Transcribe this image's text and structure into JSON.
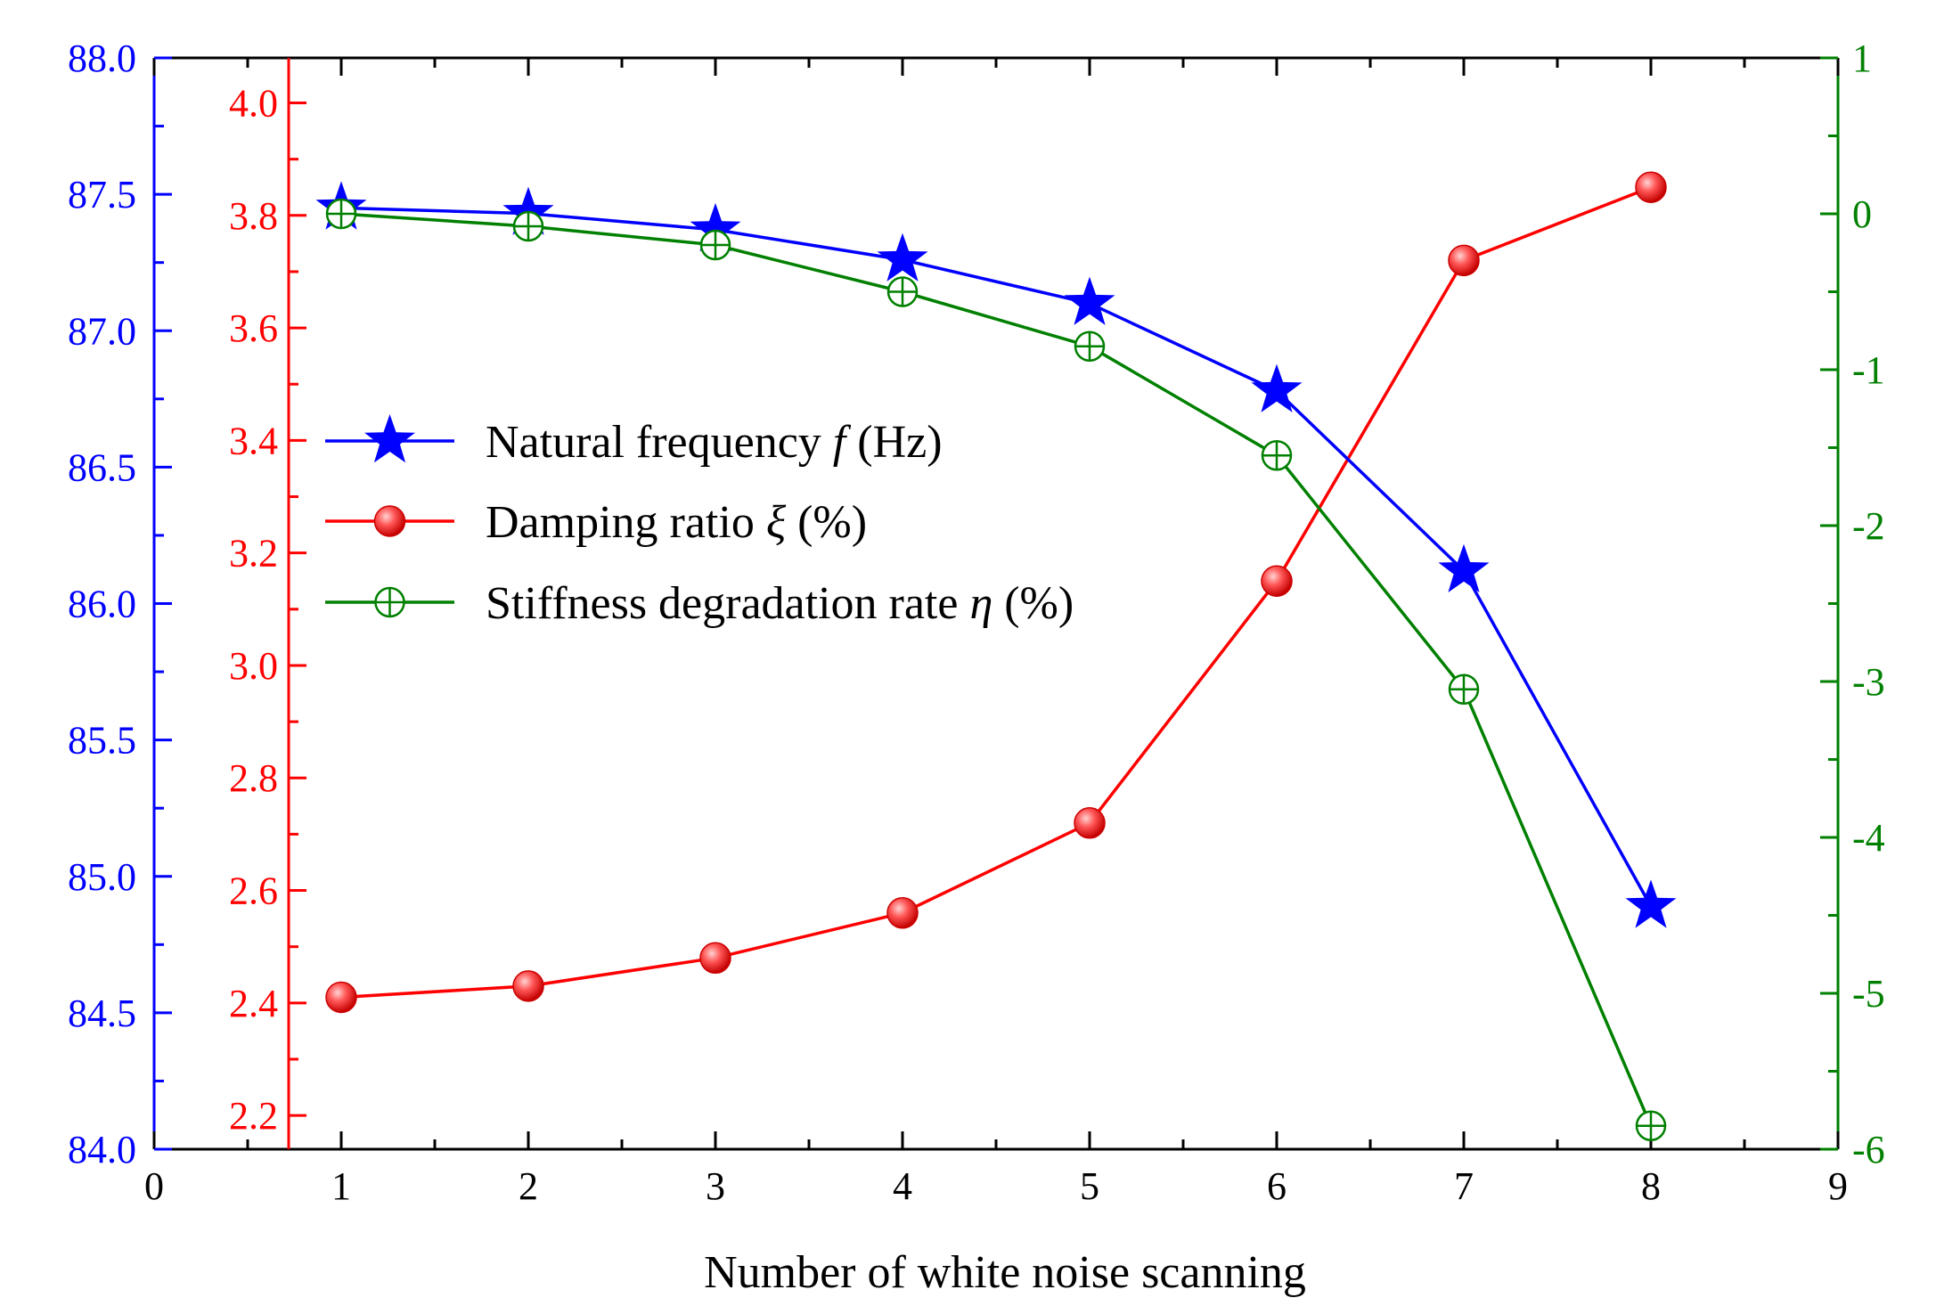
{
  "chart_data": {
    "type": "line",
    "xlabel": "Number of white noise scanning",
    "xlim": [
      0,
      9
    ],
    "x_ticks": [
      0,
      1,
      2,
      3,
      4,
      5,
      6,
      7,
      8,
      9
    ],
    "x": [
      1,
      2,
      3,
      4,
      5,
      6,
      7,
      8
    ],
    "axes": {
      "left_blue": {
        "color": "#0000ff",
        "range": [
          84.0,
          88.0
        ],
        "ticks": [
          "84.0",
          "84.5",
          "85.0",
          "85.5",
          "86.0",
          "86.5",
          "87.0",
          "87.5",
          "88.0"
        ]
      },
      "left_red": {
        "color": "#ff0000",
        "range": [
          2.14,
          4.08
        ],
        "ticks": [
          "2.2",
          "2.4",
          "2.6",
          "2.8",
          "3.0",
          "3.2",
          "3.4",
          "3.6",
          "3.8",
          "4.0"
        ]
      },
      "right_green": {
        "color": "#008000",
        "range": [
          -6,
          1
        ],
        "ticks": [
          "-6",
          "-5",
          "-4",
          "-3",
          "-2",
          "-1",
          "0",
          "1"
        ]
      }
    },
    "series": [
      {
        "name": "Natural frequency f (Hz)",
        "legend_text": "Natural frequency ",
        "legend_symbol": "f",
        "legend_unit": " (Hz)",
        "axis": "left_blue",
        "color": "#0000ff",
        "marker": "star",
        "values": [
          87.45,
          87.43,
          87.37,
          87.26,
          87.1,
          86.78,
          86.12,
          84.89
        ]
      },
      {
        "name": "Damping ratio ξ (%)",
        "legend_text": "Damping ratio ",
        "legend_symbol": "ξ",
        "legend_unit": " (%)",
        "axis": "left_red",
        "color": "#ff0000",
        "marker": "sphere",
        "values": [
          2.41,
          2.43,
          2.48,
          2.56,
          2.72,
          3.15,
          3.72,
          3.85
        ]
      },
      {
        "name": "Stiffness degradation rate η (%)",
        "legend_text": "Stiffness degradation rate ",
        "legend_symbol": "η",
        "legend_unit": " (%)",
        "axis": "right_green",
        "color": "#008000",
        "marker": "circle-cross",
        "values": [
          0.0,
          -0.08,
          -0.2,
          -0.5,
          -0.85,
          -1.55,
          -3.05,
          -5.85
        ]
      }
    ],
    "legend_position": "center-left",
    "grid": false
  }
}
